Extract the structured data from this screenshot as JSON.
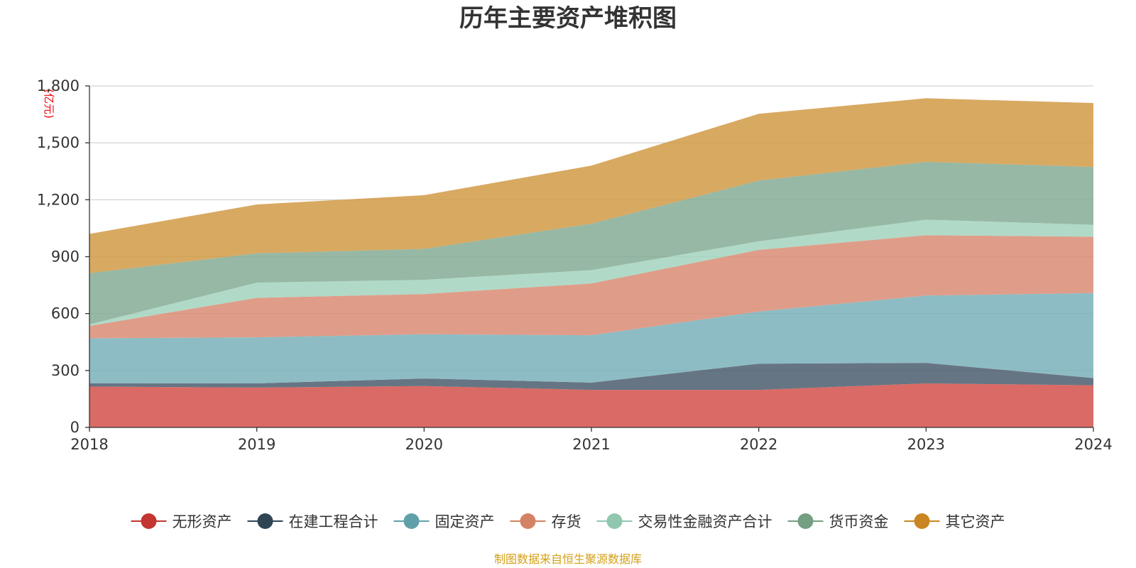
{
  "chart_data": {
    "type": "area",
    "stacked": true,
    "title": "历年主要资产堆积图",
    "unit_label": "(亿元)",
    "x": [
      "2018",
      "2019",
      "2020",
      "2021",
      "2022",
      "2023",
      "2024"
    ],
    "ylim": [
      0,
      1800
    ],
    "yticks": [
      0,
      300,
      600,
      900,
      1200,
      1500,
      1800
    ],
    "ytick_labels": [
      "0",
      "300",
      "600",
      "900",
      "1,200",
      "1,500",
      "1,800"
    ],
    "grid": true,
    "legend_position": "bottom",
    "series": [
      {
        "name": "无形资产",
        "values": [
          215,
          210,
          218,
          198,
          198,
          232,
          222
        ],
        "color": "#d4504a",
        "legend_color": "#c23531"
      },
      {
        "name": "在建工程合计",
        "values": [
          18,
          22,
          40,
          38,
          138,
          108,
          38
        ],
        "color": "#4b5d6f",
        "legend_color": "#2f4554"
      },
      {
        "name": "固定资产",
        "values": [
          237,
          243,
          233,
          250,
          275,
          355,
          448
        ],
        "color": "#7ab0ba",
        "legend_color": "#61a0a8"
      },
      {
        "name": "存货",
        "values": [
          65,
          208,
          212,
          273,
          325,
          318,
          297
        ],
        "color": "#d98c74",
        "legend_color": "#d48265"
      },
      {
        "name": "交易性金融资产合计",
        "values": [
          8,
          80,
          75,
          70,
          45,
          82,
          63
        ],
        "color": "#a2d4bd",
        "legend_color": "#91c7ae"
      },
      {
        "name": "货币资金",
        "values": [
          270,
          155,
          163,
          245,
          320,
          305,
          305
        ],
        "color": "#85ab94",
        "legend_color": "#749f83"
      },
      {
        "name": "其它资产",
        "values": [
          207,
          257,
          283,
          306,
          352,
          335,
          337
        ],
        "color": "#d19a45",
        "legend_color": "#ca8622"
      }
    ],
    "source": "制图数据来自恒生聚源数据库",
    "colors": {
      "axis": "#333333",
      "grid": "#c8c8c8",
      "unit": "#e8000b",
      "source": "#d4a017"
    }
  }
}
